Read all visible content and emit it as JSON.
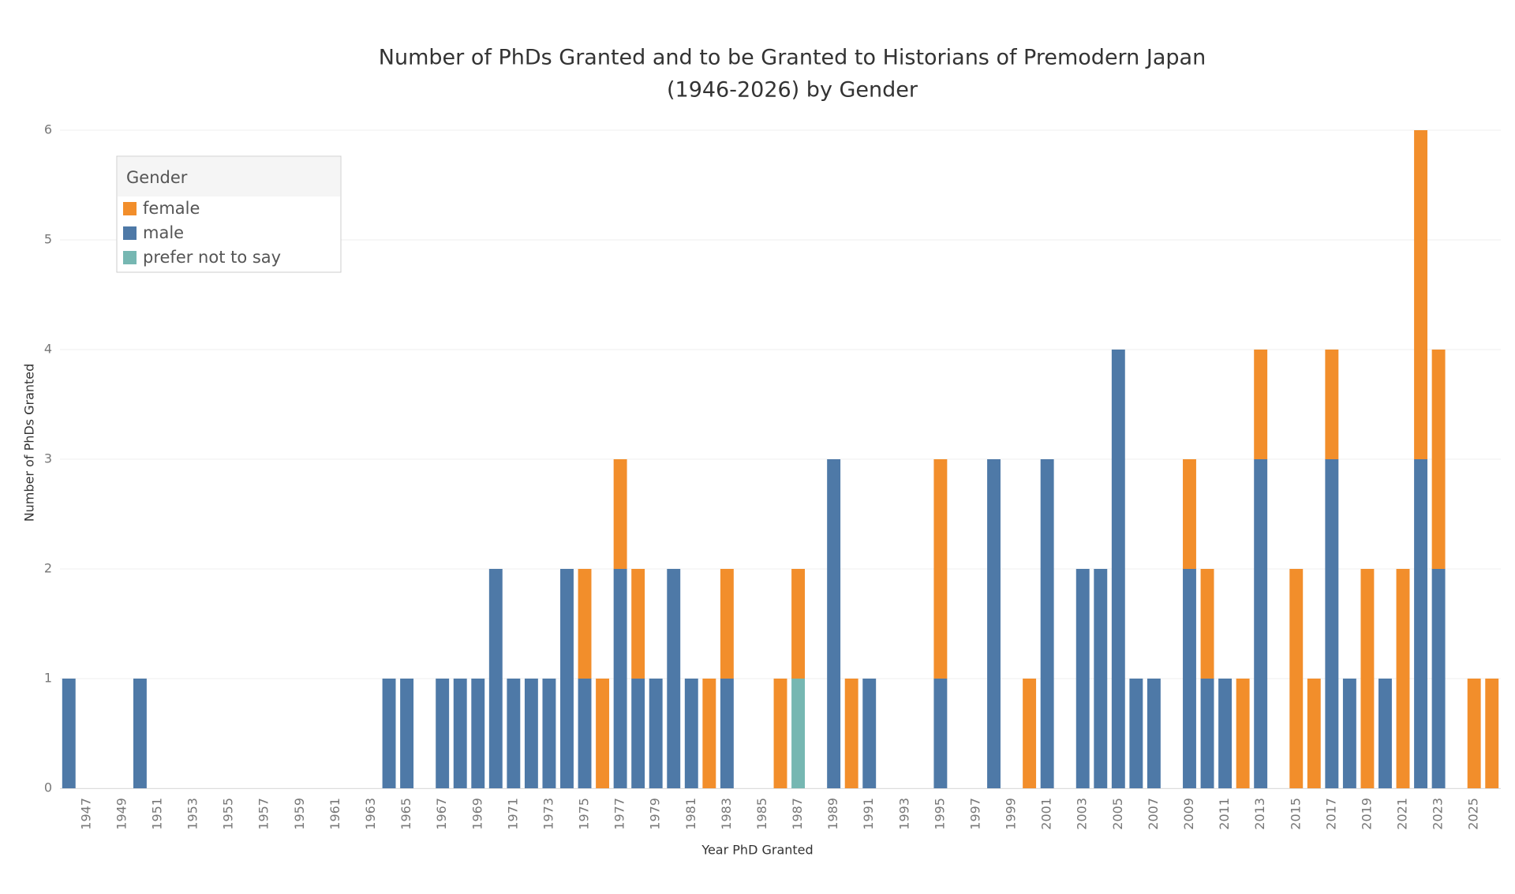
{
  "chart_data": {
    "type": "stacked-bar",
    "title": [
      "Number of PhDs Granted and to be Granted to Historians of Premodern Japan",
      "(1946-2026) by Gender"
    ],
    "x_label": "Year PhD Granted",
    "y_label": "Number of PhDs Granted",
    "legend_title": "Gender",
    "legend_position": "upper-left",
    "grid": true,
    "categories": [
      null,
      "1947",
      null,
      "1949",
      null,
      "1951",
      null,
      "1953",
      null,
      "1955",
      null,
      "1957",
      null,
      "1959",
      null,
      "1961",
      null,
      "1963",
      null,
      "1965",
      null,
      "1967",
      null,
      "1969",
      null,
      "1971",
      null,
      "1973",
      null,
      "1975",
      null,
      "1977",
      null,
      "1979",
      null,
      "1981",
      null,
      "1983",
      null,
      "1985",
      null,
      "1987",
      null,
      "1989",
      null,
      "1991",
      null,
      "1993",
      null,
      "1995",
      null,
      "1997",
      null,
      "1999",
      null,
      "2001",
      null,
      "2003",
      null,
      "2005",
      null,
      "2007",
      null,
      "2009",
      null,
      "2011",
      null,
      "2013",
      null,
      "2015",
      null,
      "2017",
      null,
      "2019",
      null,
      "2021",
      null,
      "2023",
      null,
      "2025",
      null
    ],
    "ylim": [
      0,
      6
    ],
    "yticks": [
      0,
      1,
      2,
      3,
      4,
      5,
      6
    ],
    "series": [
      {
        "name": "female",
        "color": "#f28e2b",
        "values": [
          null,
          null,
          null,
          null,
          null,
          null,
          null,
          null,
          null,
          null,
          null,
          null,
          null,
          null,
          null,
          null,
          null,
          null,
          null,
          null,
          null,
          null,
          null,
          null,
          null,
          null,
          null,
          null,
          null,
          1,
          1,
          1,
          1,
          null,
          null,
          null,
          1,
          1,
          null,
          null,
          1,
          1,
          null,
          null,
          1,
          null,
          null,
          null,
          null,
          2,
          null,
          null,
          null,
          null,
          1,
          null,
          null,
          null,
          null,
          null,
          null,
          null,
          null,
          1,
          1,
          null,
          1,
          1,
          null,
          2,
          1,
          1,
          null,
          2,
          null,
          2,
          3,
          2,
          null,
          1,
          1
        ]
      },
      {
        "name": "male",
        "color": "#4e79a7",
        "values": [
          1,
          null,
          null,
          null,
          1,
          null,
          null,
          null,
          null,
          null,
          null,
          null,
          null,
          null,
          null,
          null,
          null,
          null,
          1,
          1,
          null,
          1,
          1,
          1,
          2,
          1,
          1,
          1,
          2,
          1,
          null,
          2,
          1,
          1,
          2,
          1,
          null,
          1,
          null,
          null,
          null,
          null,
          null,
          3,
          null,
          1,
          null,
          null,
          null,
          1,
          null,
          null,
          3,
          null,
          null,
          3,
          null,
          2,
          2,
          4,
          1,
          1,
          null,
          2,
          1,
          1,
          null,
          3,
          null,
          null,
          null,
          3,
          1,
          null,
          1,
          null,
          3,
          2,
          null,
          null,
          null
        ]
      },
      {
        "name": "prefer not to say",
        "color": "#76b7b2",
        "values": [
          null,
          null,
          null,
          null,
          null,
          null,
          null,
          null,
          null,
          null,
          null,
          null,
          null,
          null,
          null,
          null,
          null,
          null,
          null,
          null,
          null,
          null,
          null,
          null,
          null,
          null,
          null,
          null,
          null,
          null,
          null,
          null,
          null,
          null,
          null,
          null,
          null,
          null,
          null,
          null,
          null,
          1,
          null,
          null,
          null,
          null,
          null,
          null,
          null,
          null,
          null,
          null,
          null,
          null,
          null,
          null,
          null,
          null,
          null,
          null,
          null,
          null,
          null,
          null,
          null,
          null,
          null,
          null,
          null,
          null,
          null,
          null,
          null,
          null,
          null,
          null,
          null,
          null,
          null,
          null,
          null
        ]
      }
    ]
  }
}
